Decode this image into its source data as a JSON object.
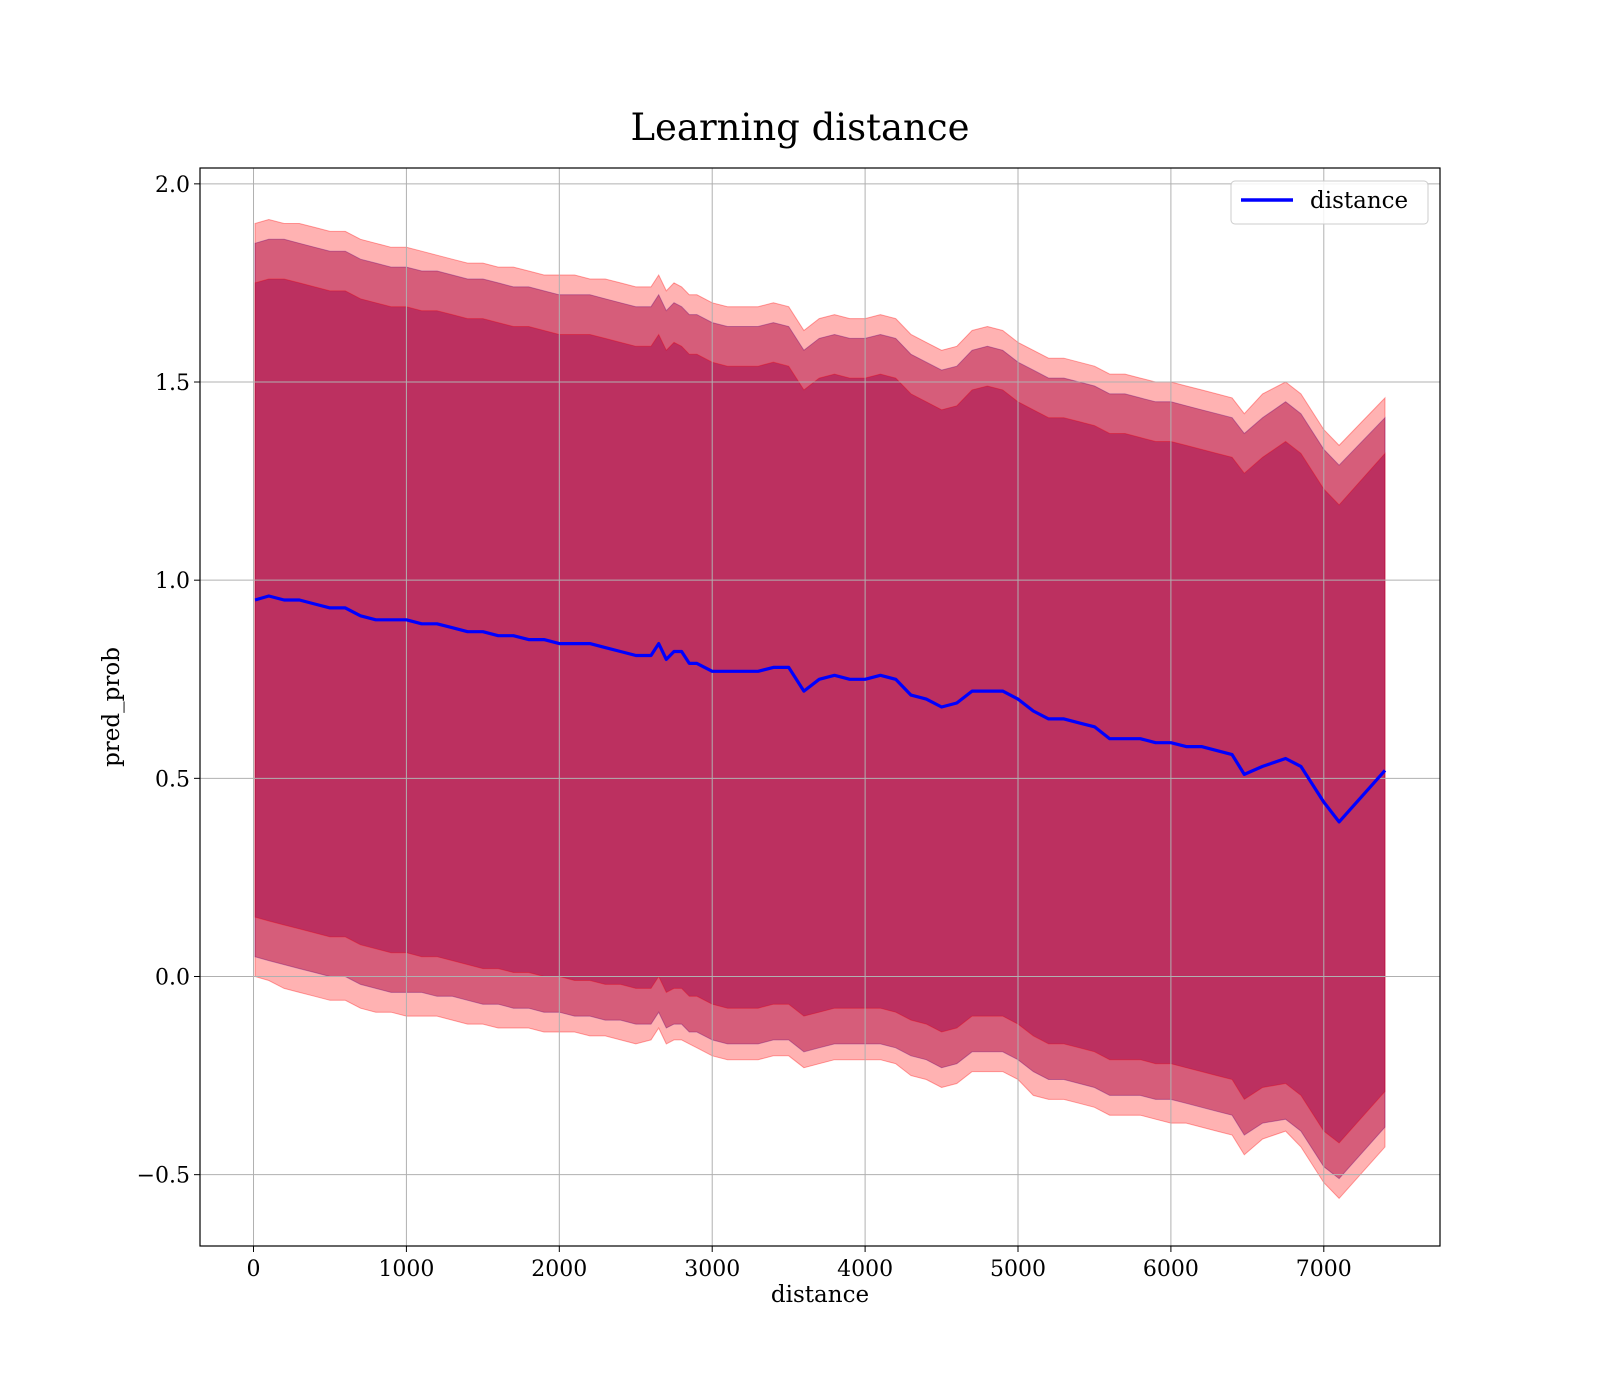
{
  "chart_data": {
    "type": "area",
    "title": "Learning distance",
    "xlabel": "distance",
    "ylabel": "pred_prob",
    "xlim": [
      -350,
      7760
    ],
    "ylim": [
      -0.68,
      2.04
    ],
    "xticks": [
      0,
      1000,
      2000,
      3000,
      4000,
      5000,
      6000,
      7000
    ],
    "xtick_labels": [
      "0",
      "1000",
      "2000",
      "3000",
      "4000",
      "5000",
      "6000",
      "7000"
    ],
    "yticks": [
      -0.5,
      0.0,
      0.5,
      1.0,
      1.5,
      2.0
    ],
    "ytick_labels": [
      "−0.5",
      "0.0",
      "0.5",
      "1.0",
      "1.5",
      "2.0"
    ],
    "grid": true,
    "legend_position": "top-right",
    "colors": {
      "line": "#0000ff",
      "band": "#ff0000",
      "inner_band": "#4b0082",
      "grid": "#b0b0b0"
    },
    "x": [
      10,
      100,
      200,
      300,
      400,
      500,
      600,
      700,
      800,
      900,
      1000,
      1100,
      1200,
      1300,
      1400,
      1500,
      1600,
      1700,
      1800,
      1900,
      2000,
      2100,
      2200,
      2300,
      2400,
      2500,
      2600,
      2650,
      2700,
      2750,
      2800,
      2850,
      2900,
      3000,
      3100,
      3200,
      3300,
      3400,
      3500,
      3600,
      3700,
      3800,
      3900,
      4000,
      4100,
      4200,
      4300,
      4400,
      4500,
      4600,
      4700,
      4800,
      4900,
      5000,
      5100,
      5200,
      5300,
      5400,
      5500,
      5600,
      5700,
      5800,
      5900,
      6000,
      6100,
      6200,
      6300,
      6400,
      6480,
      6600,
      6750,
      6850,
      7000,
      7100,
      7400
    ],
    "series": [
      {
        "name": "distance",
        "values": [
          0.95,
          0.96,
          0.95,
          0.95,
          0.94,
          0.93,
          0.93,
          0.91,
          0.9,
          0.9,
          0.9,
          0.89,
          0.89,
          0.88,
          0.87,
          0.87,
          0.86,
          0.86,
          0.85,
          0.85,
          0.84,
          0.84,
          0.84,
          0.83,
          0.82,
          0.81,
          0.81,
          0.84,
          0.8,
          0.82,
          0.82,
          0.79,
          0.79,
          0.77,
          0.77,
          0.77,
          0.77,
          0.78,
          0.78,
          0.72,
          0.75,
          0.76,
          0.75,
          0.75,
          0.76,
          0.75,
          0.71,
          0.7,
          0.68,
          0.69,
          0.72,
          0.72,
          0.72,
          0.7,
          0.67,
          0.65,
          0.65,
          0.64,
          0.63,
          0.6,
          0.6,
          0.6,
          0.59,
          0.59,
          0.58,
          0.58,
          0.57,
          0.56,
          0.51,
          0.53,
          0.55,
          0.53,
          0.44,
          0.39,
          0.52
        ]
      }
    ],
    "bands": [
      {
        "role": "outer",
        "lower": [
          0.0,
          -0.01,
          -0.03,
          -0.04,
          -0.05,
          -0.06,
          -0.06,
          -0.08,
          -0.09,
          -0.09,
          -0.1,
          -0.1,
          -0.1,
          -0.11,
          -0.12,
          -0.12,
          -0.13,
          -0.13,
          -0.13,
          -0.14,
          -0.14,
          -0.14,
          -0.15,
          -0.15,
          -0.16,
          -0.17,
          -0.16,
          -0.13,
          -0.17,
          -0.16,
          -0.16,
          -0.17,
          -0.18,
          -0.2,
          -0.21,
          -0.21,
          -0.21,
          -0.2,
          -0.2,
          -0.23,
          -0.22,
          -0.21,
          -0.21,
          -0.21,
          -0.21,
          -0.22,
          -0.25,
          -0.26,
          -0.28,
          -0.27,
          -0.24,
          -0.24,
          -0.24,
          -0.26,
          -0.3,
          -0.31,
          -0.31,
          -0.32,
          -0.33,
          -0.35,
          -0.35,
          -0.35,
          -0.36,
          -0.37,
          -0.37,
          -0.38,
          -0.39,
          -0.4,
          -0.45,
          -0.41,
          -0.39,
          -0.43,
          -0.52,
          -0.56,
          -0.43
        ],
        "upper": [
          1.9,
          1.91,
          1.9,
          1.9,
          1.89,
          1.88,
          1.88,
          1.86,
          1.85,
          1.84,
          1.84,
          1.83,
          1.82,
          1.81,
          1.8,
          1.8,
          1.79,
          1.79,
          1.78,
          1.77,
          1.77,
          1.77,
          1.76,
          1.76,
          1.75,
          1.74,
          1.74,
          1.77,
          1.73,
          1.75,
          1.74,
          1.72,
          1.72,
          1.7,
          1.69,
          1.69,
          1.69,
          1.7,
          1.69,
          1.63,
          1.66,
          1.67,
          1.66,
          1.66,
          1.67,
          1.66,
          1.62,
          1.6,
          1.58,
          1.59,
          1.63,
          1.64,
          1.63,
          1.6,
          1.58,
          1.56,
          1.56,
          1.55,
          1.54,
          1.52,
          1.52,
          1.51,
          1.5,
          1.5,
          1.49,
          1.48,
          1.47,
          1.46,
          1.42,
          1.47,
          1.5,
          1.47,
          1.38,
          1.34,
          1.46
        ]
      },
      {
        "role": "middle",
        "lower": [
          0.05,
          0.04,
          0.03,
          0.02,
          0.01,
          0.0,
          0.0,
          -0.02,
          -0.03,
          -0.04,
          -0.04,
          -0.04,
          -0.05,
          -0.05,
          -0.06,
          -0.07,
          -0.07,
          -0.08,
          -0.08,
          -0.09,
          -0.09,
          -0.1,
          -0.1,
          -0.11,
          -0.11,
          -0.12,
          -0.12,
          -0.09,
          -0.13,
          -0.12,
          -0.12,
          -0.14,
          -0.14,
          -0.16,
          -0.17,
          -0.17,
          -0.17,
          -0.16,
          -0.16,
          -0.19,
          -0.18,
          -0.17,
          -0.17,
          -0.17,
          -0.17,
          -0.18,
          -0.2,
          -0.21,
          -0.23,
          -0.22,
          -0.19,
          -0.19,
          -0.19,
          -0.21,
          -0.24,
          -0.26,
          -0.26,
          -0.27,
          -0.28,
          -0.3,
          -0.3,
          -0.3,
          -0.31,
          -0.31,
          -0.32,
          -0.33,
          -0.34,
          -0.35,
          -0.4,
          -0.37,
          -0.36,
          -0.39,
          -0.48,
          -0.51,
          -0.38
        ],
        "upper": [
          1.85,
          1.86,
          1.86,
          1.85,
          1.84,
          1.83,
          1.83,
          1.81,
          1.8,
          1.79,
          1.79,
          1.78,
          1.78,
          1.77,
          1.76,
          1.76,
          1.75,
          1.74,
          1.74,
          1.73,
          1.72,
          1.72,
          1.72,
          1.71,
          1.7,
          1.69,
          1.69,
          1.72,
          1.68,
          1.7,
          1.69,
          1.67,
          1.67,
          1.65,
          1.64,
          1.64,
          1.64,
          1.65,
          1.64,
          1.58,
          1.61,
          1.62,
          1.61,
          1.61,
          1.62,
          1.61,
          1.57,
          1.55,
          1.53,
          1.54,
          1.58,
          1.59,
          1.58,
          1.55,
          1.53,
          1.51,
          1.51,
          1.5,
          1.49,
          1.47,
          1.47,
          1.46,
          1.45,
          1.45,
          1.44,
          1.43,
          1.42,
          1.41,
          1.37,
          1.41,
          1.45,
          1.42,
          1.33,
          1.29,
          1.41
        ]
      },
      {
        "role": "inner",
        "lower": [
          0.15,
          0.14,
          0.13,
          0.12,
          0.11,
          0.1,
          0.1,
          0.08,
          0.07,
          0.06,
          0.06,
          0.05,
          0.05,
          0.04,
          0.03,
          0.02,
          0.02,
          0.01,
          0.01,
          0.0,
          0.0,
          -0.01,
          -0.01,
          -0.02,
          -0.02,
          -0.03,
          -0.03,
          0.0,
          -0.04,
          -0.03,
          -0.03,
          -0.05,
          -0.05,
          -0.07,
          -0.08,
          -0.08,
          -0.08,
          -0.07,
          -0.07,
          -0.1,
          -0.09,
          -0.08,
          -0.08,
          -0.08,
          -0.08,
          -0.09,
          -0.11,
          -0.12,
          -0.14,
          -0.13,
          -0.1,
          -0.1,
          -0.1,
          -0.12,
          -0.15,
          -0.17,
          -0.17,
          -0.18,
          -0.19,
          -0.21,
          -0.21,
          -0.21,
          -0.22,
          -0.22,
          -0.23,
          -0.24,
          -0.25,
          -0.26,
          -0.31,
          -0.28,
          -0.27,
          -0.3,
          -0.39,
          -0.42,
          -0.29
        ],
        "upper": [
          1.75,
          1.76,
          1.76,
          1.75,
          1.74,
          1.73,
          1.73,
          1.71,
          1.7,
          1.69,
          1.69,
          1.68,
          1.68,
          1.67,
          1.66,
          1.66,
          1.65,
          1.64,
          1.64,
          1.63,
          1.62,
          1.62,
          1.62,
          1.61,
          1.6,
          1.59,
          1.59,
          1.62,
          1.58,
          1.6,
          1.59,
          1.57,
          1.57,
          1.55,
          1.54,
          1.54,
          1.54,
          1.55,
          1.54,
          1.48,
          1.51,
          1.52,
          1.51,
          1.51,
          1.52,
          1.51,
          1.47,
          1.45,
          1.43,
          1.44,
          1.48,
          1.49,
          1.48,
          1.45,
          1.43,
          1.41,
          1.41,
          1.4,
          1.39,
          1.37,
          1.37,
          1.36,
          1.35,
          1.35,
          1.34,
          1.33,
          1.32,
          1.31,
          1.27,
          1.31,
          1.35,
          1.32,
          1.23,
          1.19,
          1.32
        ]
      }
    ]
  }
}
